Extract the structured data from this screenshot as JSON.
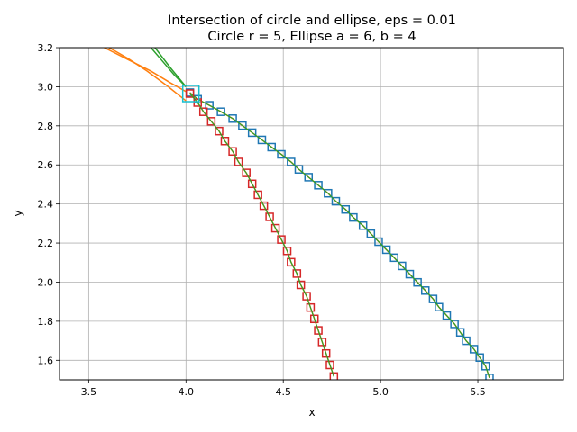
{
  "chart_data": {
    "type": "line",
    "title_line1": "Intersection of circle and ellipse, eps = 0.01",
    "title_line2": "Circle r = 5, Ellipse a = 6, b = 4",
    "xlabel": "x",
    "ylabel": "y",
    "xlim": [
      3.35,
      5.94
    ],
    "ylim": [
      1.5,
      3.2
    ],
    "xticks": [
      3.5,
      4.0,
      4.5,
      5.0,
      5.5
    ],
    "xtick_labels": [
      "3.5",
      "4.0",
      "4.5",
      "5.0",
      "5.5"
    ],
    "yticks": [
      1.6,
      1.8,
      2.0,
      2.2,
      2.4,
      2.6,
      2.8,
      3.0,
      3.2
    ],
    "ytick_labels": [
      "1.6",
      "1.8",
      "2.0",
      "2.2",
      "2.4",
      "2.6",
      "2.8",
      "3.0",
      "3.2"
    ],
    "grid": true,
    "series": [
      {
        "color": "#ff7f0e",
        "style": "line",
        "x": [
          3.58,
          3.7,
          3.82,
          3.92,
          4.0
        ],
        "y": [
          3.2,
          3.14,
          3.08,
          3.02,
          2.975
        ]
      },
      {
        "color": "#ff7f0e",
        "style": "line",
        "x": [
          3.5,
          3.6,
          3.7,
          3.8,
          3.9,
          4.0
        ],
        "y": [
          3.249,
          3.203,
          3.146,
          3.08,
          3.007,
          2.928
        ]
      },
      {
        "color": "#2ca02c",
        "style": "line",
        "x": [
          3.82,
          3.88,
          3.94,
          4.0
        ],
        "y": [
          3.2,
          3.13,
          3.06,
          3.0
        ]
      },
      {
        "color": "#2ca02c",
        "style": "line",
        "x": [
          3.68,
          3.76,
          3.84,
          3.92,
          4.0
        ],
        "y": [
          3.385,
          3.293,
          3.201,
          3.097,
          3.0
        ]
      },
      {
        "color": "#1f77b4",
        "style": "squares",
        "x": [
          4.02,
          4.06,
          4.12,
          4.18,
          4.24,
          4.29,
          4.34,
          4.39,
          4.44,
          4.49,
          4.54,
          4.58,
          4.63,
          4.68,
          4.73,
          4.77,
          4.82,
          4.86,
          4.91,
          4.95,
          4.99,
          5.03,
          5.07,
          5.11,
          5.15,
          5.19,
          5.23,
          5.27,
          5.3,
          5.34,
          5.38,
          5.41,
          5.44,
          5.48,
          5.51,
          5.54,
          5.56
        ],
        "y": [
          2.97,
          2.936,
          2.905,
          2.872,
          2.837,
          2.801,
          2.765,
          2.728,
          2.691,
          2.654,
          2.615,
          2.577,
          2.537,
          2.496,
          2.455,
          2.414,
          2.372,
          2.331,
          2.289,
          2.248,
          2.207,
          2.166,
          2.125,
          2.083,
          2.041,
          1.999,
          1.957,
          1.914,
          1.872,
          1.829,
          1.786,
          1.743,
          1.7,
          1.657,
          1.614,
          1.57,
          1.51
        ]
      },
      {
        "color": "#d62728",
        "style": "squares",
        "x": [
          4.02,
          4.06,
          4.09,
          4.13,
          4.17,
          4.2,
          4.24,
          4.27,
          4.31,
          4.34,
          4.37,
          4.4,
          4.43,
          4.46,
          4.49,
          4.52,
          4.54,
          4.57,
          4.59,
          4.62,
          4.64,
          4.66,
          4.68,
          4.7,
          4.72,
          4.74,
          4.76
        ],
        "y": [
          2.965,
          2.919,
          2.872,
          2.823,
          2.773,
          2.722,
          2.669,
          2.615,
          2.559,
          2.503,
          2.447,
          2.391,
          2.334,
          2.276,
          2.218,
          2.16,
          2.102,
          2.044,
          1.986,
          1.928,
          1.87,
          1.812,
          1.753,
          1.694,
          1.635,
          1.576,
          1.517
        ]
      },
      {
        "color": "#17becf",
        "style": "highlight",
        "x": [
          4.025
        ],
        "y": [
          2.965
        ]
      }
    ]
  }
}
